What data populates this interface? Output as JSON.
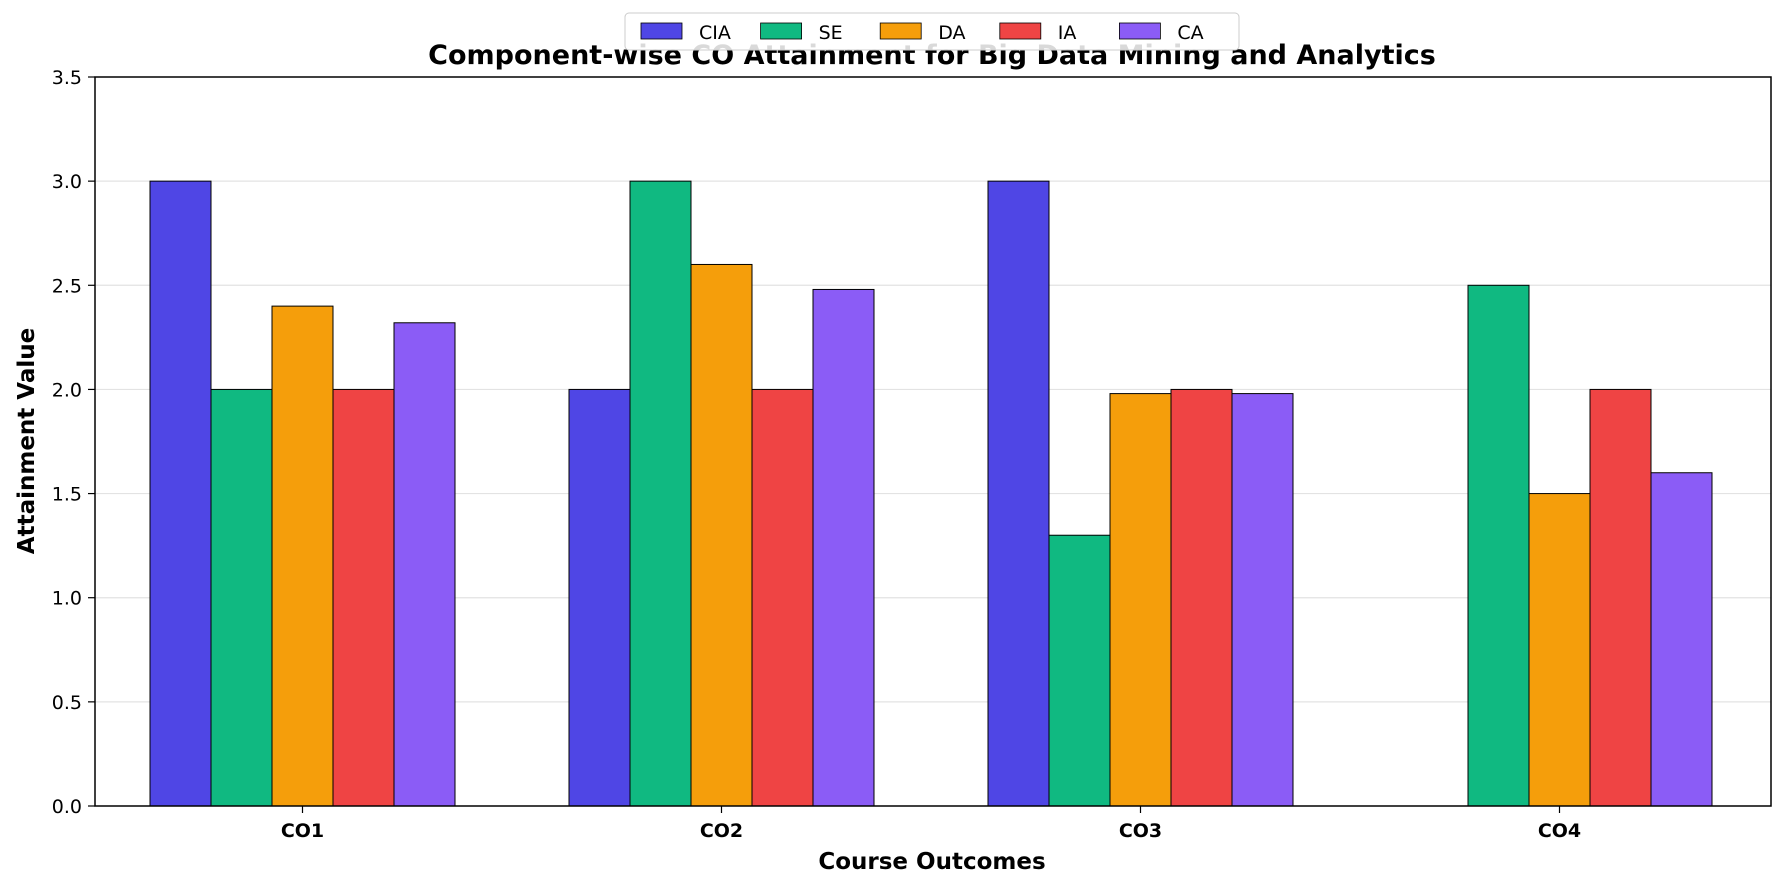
{
  "chart_data": {
    "type": "bar",
    "title": "Component-wise CO Attainment for Big Data Mining and Analytics",
    "xlabel": "Course Outcomes",
    "ylabel": "Attainment Value",
    "categories": [
      "CO1",
      "CO2",
      "CO3",
      "CO4"
    ],
    "ylim": [
      0,
      3.5
    ],
    "yticks": [
      "0.0",
      "0.5",
      "1.0",
      "1.5",
      "2.0",
      "2.5",
      "3.0",
      "3.5"
    ],
    "grid": "horizontal",
    "legend_position": "top-center",
    "series": [
      {
        "name": "CIA",
        "color": "#4F46E5",
        "values": [
          3.0,
          2.0,
          3.0,
          0
        ]
      },
      {
        "name": "SE",
        "color": "#10B981",
        "values": [
          2.0,
          3.0,
          1.3,
          2.5
        ]
      },
      {
        "name": "DA",
        "color": "#F59E0B",
        "values": [
          2.4,
          2.6,
          1.98,
          1.5
        ]
      },
      {
        "name": "IA",
        "color": "#EF4444",
        "values": [
          2.0,
          2.0,
          2.0,
          2.0
        ]
      },
      {
        "name": "CA",
        "color": "#8B5CF6",
        "values": [
          2.32,
          2.48,
          1.98,
          1.6
        ]
      }
    ]
  }
}
